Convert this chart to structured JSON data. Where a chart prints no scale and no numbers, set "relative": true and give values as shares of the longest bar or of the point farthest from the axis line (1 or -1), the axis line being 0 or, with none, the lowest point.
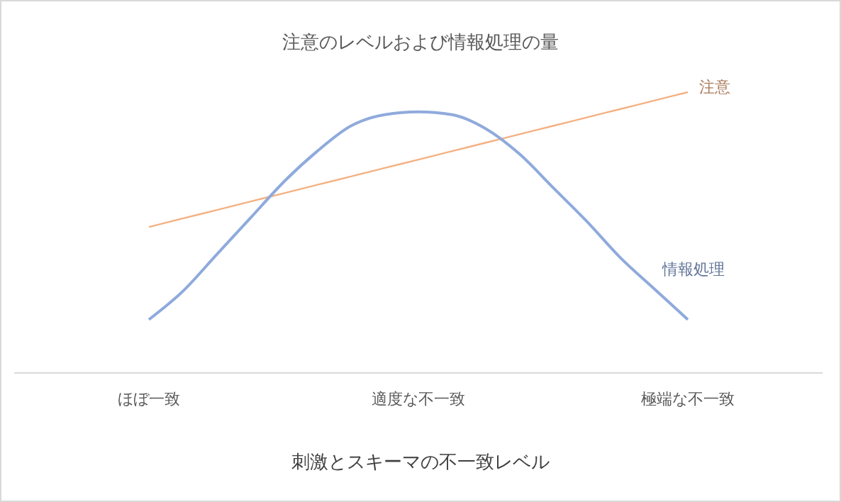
{
  "chart_data": {
    "type": "line",
    "title": "注意のレベルおよび情報処理の量",
    "xlabel": "刺激とスキーマの不一致レベル",
    "relative": true,
    "categories": [
      "ほぼ一致",
      null,
      null,
      null,
      null,
      null,
      null,
      null,
      "適度な不一致",
      null,
      null,
      null,
      null,
      null,
      null,
      null,
      "極端な不一致"
    ],
    "legend": false,
    "series": [
      {
        "name": "注意",
        "color": "#f4b183",
        "values": [
          0.52,
          0.55,
          0.58,
          0.61,
          0.64,
          0.67,
          0.7,
          0.73,
          0.76,
          0.79,
          0.82,
          0.85,
          0.88,
          0.91,
          0.94,
          0.97,
          1.0
        ]
      },
      {
        "name": "情報処理",
        "color": "#8faadc",
        "values": [
          0.19,
          0.29,
          0.42,
          0.55,
          0.68,
          0.79,
          0.88,
          0.92,
          0.93,
          0.92,
          0.87,
          0.78,
          0.66,
          0.54,
          0.41,
          0.3,
          0.19
        ]
      }
    ]
  }
}
